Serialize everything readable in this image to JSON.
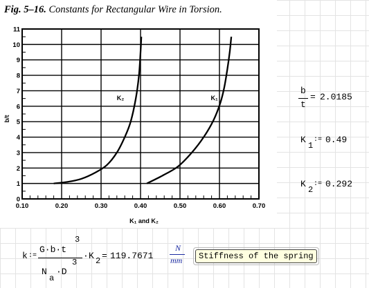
{
  "figure": {
    "number": "Fig. 5–16.",
    "title": "Constants for Rectangular Wire in Torsion."
  },
  "chart_data": {
    "type": "line",
    "xlabel": "K₁ and K₂",
    "ylabel": "b/t",
    "xlim": [
      0.1,
      0.7
    ],
    "ylim": [
      0,
      11
    ],
    "xticks": [
      "0.10",
      "0.20",
      "0.30",
      "0.40",
      "0.50",
      "0.60",
      "0.70"
    ],
    "yticks": [
      "0",
      "1",
      "2",
      "3",
      "4",
      "5",
      "6",
      "7",
      "8",
      "9",
      "10",
      "11"
    ],
    "grid": true,
    "series": [
      {
        "name": "K₂",
        "x": [
          0.18,
          0.215,
          0.25,
          0.285,
          0.315,
          0.34,
          0.36,
          0.375,
          0.388,
          0.396,
          0.4,
          0.402
        ],
        "y": [
          1.0,
          1.1,
          1.3,
          1.7,
          2.2,
          3.0,
          4.0,
          5.0,
          6.5,
          8.0,
          9.5,
          10.5
        ]
      },
      {
        "name": "K₁",
        "x": [
          0.416,
          0.455,
          0.495,
          0.53,
          0.56,
          0.585,
          0.602,
          0.612,
          0.62,
          0.626,
          0.63
        ],
        "y": [
          1.0,
          1.5,
          2.1,
          3.0,
          4.0,
          5.1,
          6.2,
          7.2,
          8.4,
          9.5,
          10.5
        ]
      }
    ]
  },
  "equations": {
    "ratio": {
      "num": "b",
      "den": "t",
      "value": "2.0185"
    },
    "k1": {
      "name": "K",
      "sub": "1",
      "assign": ":=",
      "value": "0.49"
    },
    "k2": {
      "name": "K",
      "sub": "2",
      "assign": ":=",
      "value": "0.292"
    },
    "stiffness": {
      "lhs": "k",
      "assign": ":=",
      "numerator": "G·b·t",
      "num_exp": "3",
      "denominator_main": "N",
      "denominator_sub": "a",
      "denominator_rest": "·D",
      "den_exp": "3",
      "times": "·",
      "factor_name": "K",
      "factor_sub": "2",
      "equals": "=",
      "value": "119.7671",
      "unit_num": "N",
      "unit_den": "mm",
      "annotation": "Stiffness of the spring"
    }
  }
}
